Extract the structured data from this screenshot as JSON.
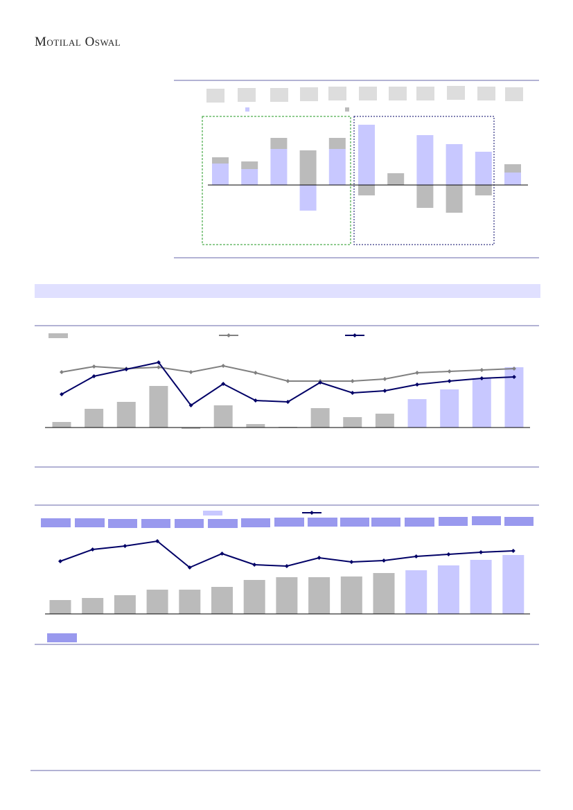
{
  "header": {
    "brand": "Motilal Oswal"
  },
  "chart_data": [
    {
      "type": "bar",
      "stacked": true,
      "ylim": [
        -9,
        10
      ],
      "series": [
        {
          "color": "#c8c8ff",
          "values": [
            3.1,
            2.3,
            5.2,
            -3.7,
            5.2,
            8.7,
            0,
            7.2,
            5.9,
            4.8,
            1.8
          ]
        },
        {
          "color": "#bbbbbb",
          "values": [
            0.9,
            1.1,
            1.6,
            5.0,
            1.6,
            -1.5,
            1.7,
            -3.3,
            -4.0,
            -1.5,
            1.2
          ]
        }
      ]
    },
    {
      "type": "combo",
      "ylim": [
        -5,
        100
      ],
      "series": [
        {
          "type": "bar",
          "color": "#bbbbbb",
          "values": [
            8,
            27,
            37,
            60,
            -2,
            32,
            5,
            1,
            28,
            15,
            20,
            null,
            null,
            null,
            null
          ]
        },
        {
          "type": "bar",
          "color": "#c8c8ff",
          "values": [
            null,
            null,
            null,
            null,
            null,
            null,
            null,
            null,
            null,
            null,
            null,
            41,
            55,
            71,
            87
          ]
        },
        {
          "type": "line",
          "color": "#808080",
          "values": [
            80,
            88,
            85,
            87,
            80,
            89,
            79,
            67,
            67,
            67,
            70,
            79,
            81,
            83,
            85
          ]
        },
        {
          "type": "line",
          "color": "#000066",
          "values": [
            48,
            74,
            84,
            94,
            32,
            63,
            39,
            37,
            65,
            50,
            53,
            62,
            67,
            71,
            73
          ]
        }
      ]
    },
    {
      "type": "combo",
      "ylim": [
        0,
        110
      ],
      "series": [
        {
          "type": "bar",
          "color": "#bbbbbb",
          "values": [
            20,
            23,
            27,
            35,
            35,
            39,
            49,
            53,
            53,
            54,
            59,
            null,
            null,
            null,
            null
          ]
        },
        {
          "type": "bar",
          "color": "#c8c8ff",
          "values": [
            null,
            null,
            null,
            null,
            null,
            null,
            null,
            null,
            null,
            null,
            null,
            63,
            70,
            78,
            85
          ]
        },
        {
          "type": "line",
          "color": "#000066",
          "values": [
            76,
            93,
            98,
            105,
            67,
            87,
            71,
            69,
            81,
            75,
            77,
            83,
            86,
            89,
            91
          ]
        }
      ]
    }
  ]
}
